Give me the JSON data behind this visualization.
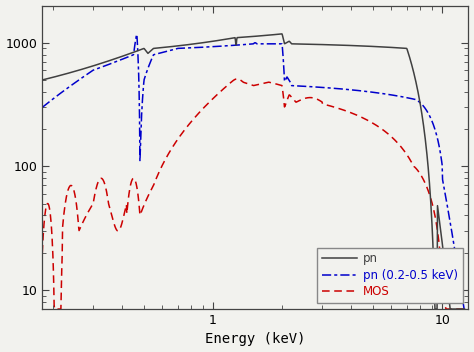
{
  "title": "",
  "xlabel": "Energy (keV)",
  "ylabel": "",
  "xlim": [
    0.18,
    13.0
  ],
  "ylim": [
    7.0,
    2000.0
  ],
  "background_color": "#f2f2ee",
  "legend_labels": [
    "pn",
    "pn (0.2-0.5 keV)",
    "MOS"
  ],
  "legend_colors": [
    "#404040",
    "#0000cc",
    "#cc0000"
  ],
  "legend_styles": [
    "-",
    "-.",
    "--"
  ],
  "pn_color": "#404040",
  "pns_color": "#0000cc",
  "mos_color": "#cc0000"
}
